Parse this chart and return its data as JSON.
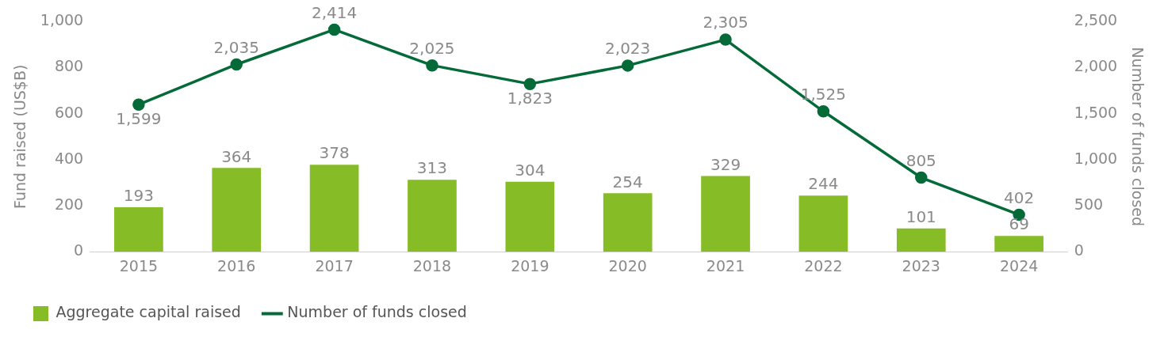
{
  "chart_data": {
    "type": "bar",
    "categories": [
      "2015",
      "2016",
      "2017",
      "2018",
      "2019",
      "2020",
      "2021",
      "2022",
      "2023",
      "2024"
    ],
    "series": [
      {
        "name": "Aggregate capital raised",
        "color": "#86bc25",
        "values": [
          193,
          364,
          378,
          313,
          304,
          254,
          329,
          244,
          101,
          69
        ],
        "value_labels": [
          "193",
          "364",
          "378",
          "313",
          "304",
          "254",
          "329",
          "244",
          "101",
          "69"
        ]
      },
      {
        "name": "Number of funds closed",
        "type": "line",
        "axis": "y2",
        "color": "#046a38",
        "values": [
          1599,
          2035,
          2414,
          2025,
          1823,
          2023,
          2305,
          1525,
          805,
          402
        ],
        "value_labels": [
          "1,599",
          "2,035",
          "2,414",
          "2,025",
          "1,823",
          "2,023",
          "2,305",
          "1,525",
          "805",
          "402"
        ]
      }
    ],
    "ylabel": "Fund raised (US$B)",
    "y2label": "Number of funds closed",
    "ylim": [
      0,
      1000
    ],
    "yticks": [
      0,
      200,
      400,
      600,
      800,
      {
        "value": 1000,
        "label": "1,000"
      }
    ],
    "y2lim": [
      0,
      2500
    ],
    "y2ticks": [
      0,
      500,
      {
        "value": 1000,
        "label": "1,000"
      },
      {
        "value": 1500,
        "label": "1,500"
      },
      {
        "value": 2000,
        "label": "2,000"
      },
      {
        "value": 2500,
        "label": "2,500"
      }
    ],
    "legend": "bottom",
    "marker": "circle",
    "grid": false
  }
}
